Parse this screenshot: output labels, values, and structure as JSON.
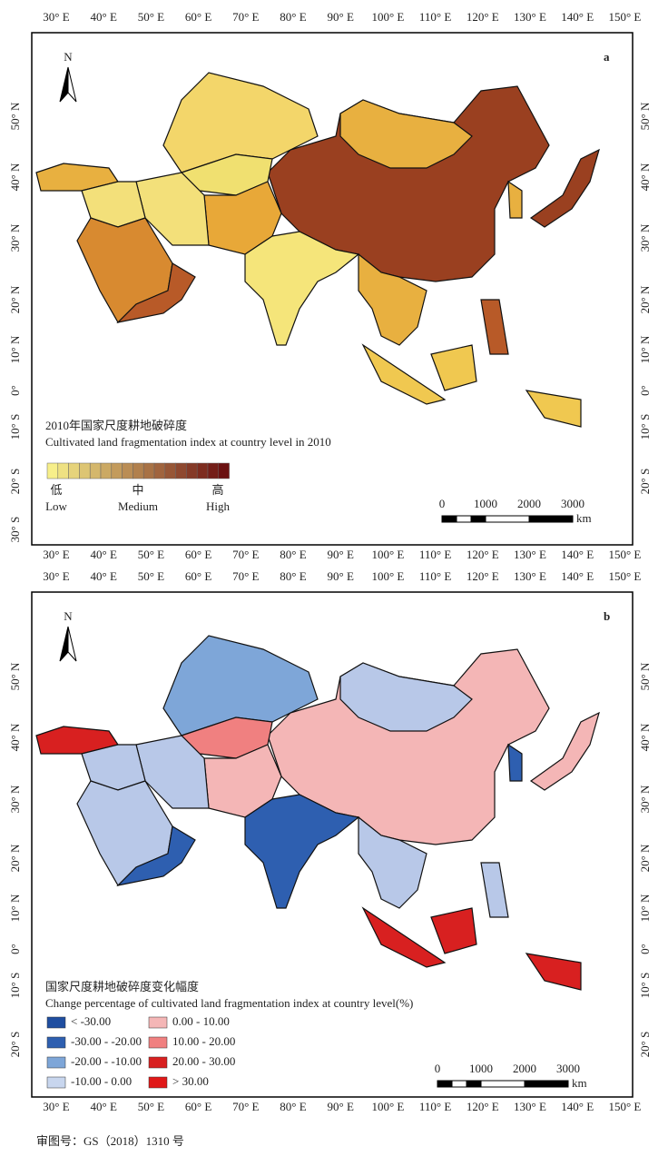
{
  "panels": [
    {
      "label": "a",
      "north": "N",
      "lon_labels": [
        "30° E",
        "40° E",
        "50° E",
        "60° E",
        "70° E",
        "80° E",
        "90° E",
        "100° E",
        "110° E",
        "120° E",
        "130° E",
        "140° E",
        "150° E"
      ],
      "lat_labels_left": [
        "50° N",
        "40° N",
        "30° N",
        "20° N",
        "10° N",
        "0°",
        "10° S",
        "20° S",
        "30° S"
      ],
      "lat_labels_right": [
        "50° N",
        "40° N",
        "30° N",
        "20° N",
        "10° N",
        "0°",
        "10° S",
        "20° S"
      ],
      "legend": {
        "title_zh": "2010年国家尺度耕地破碎度",
        "title_en": "Cultivated land fragmentation index at country level in 2010",
        "ramp_labels_zh": [
          "低",
          "中",
          "高"
        ],
        "ramp_labels_en": [
          "Low",
          "Medium",
          "High"
        ]
      },
      "scale": {
        "ticks": [
          "0",
          "1000",
          "2000",
          "3000"
        ],
        "unit": "km"
      }
    },
    {
      "label": "b",
      "north": "N",
      "lon_labels": [
        "30° E",
        "40° E",
        "50° E",
        "60° E",
        "70° E",
        "80° E",
        "90° E",
        "100° E",
        "110° E",
        "120° E",
        "130° E",
        "140° E",
        "150° E"
      ],
      "lat_labels_left": [
        "50° N",
        "40° N",
        "30° N",
        "20° N",
        "10° N",
        "0°",
        "10° S",
        "20° S"
      ],
      "lat_labels_right": [
        "50° N",
        "40° N",
        "30° N",
        "20° N",
        "10° N",
        "0°",
        "10° S",
        "20° S"
      ],
      "legend": {
        "title_zh": "国家尺度耕地破碎度变化幅度",
        "title_en": "Change percentage of cultivated land fragmentation index at country level(%)",
        "classes": [
          "< -30.00",
          "-30.00 - -20.00",
          "-20.00 - -10.00",
          "-10.00 - 0.00",
          "0.00 - 10.00",
          "10.00 - 20.00",
          "20.00 - 30.00",
          "> 30.00"
        ]
      },
      "scale": {
        "ticks": [
          "0",
          "1000",
          "2000",
          "3000"
        ],
        "unit": "km"
      }
    }
  ],
  "footer": "审图号：GS（2018）1310 号"
}
